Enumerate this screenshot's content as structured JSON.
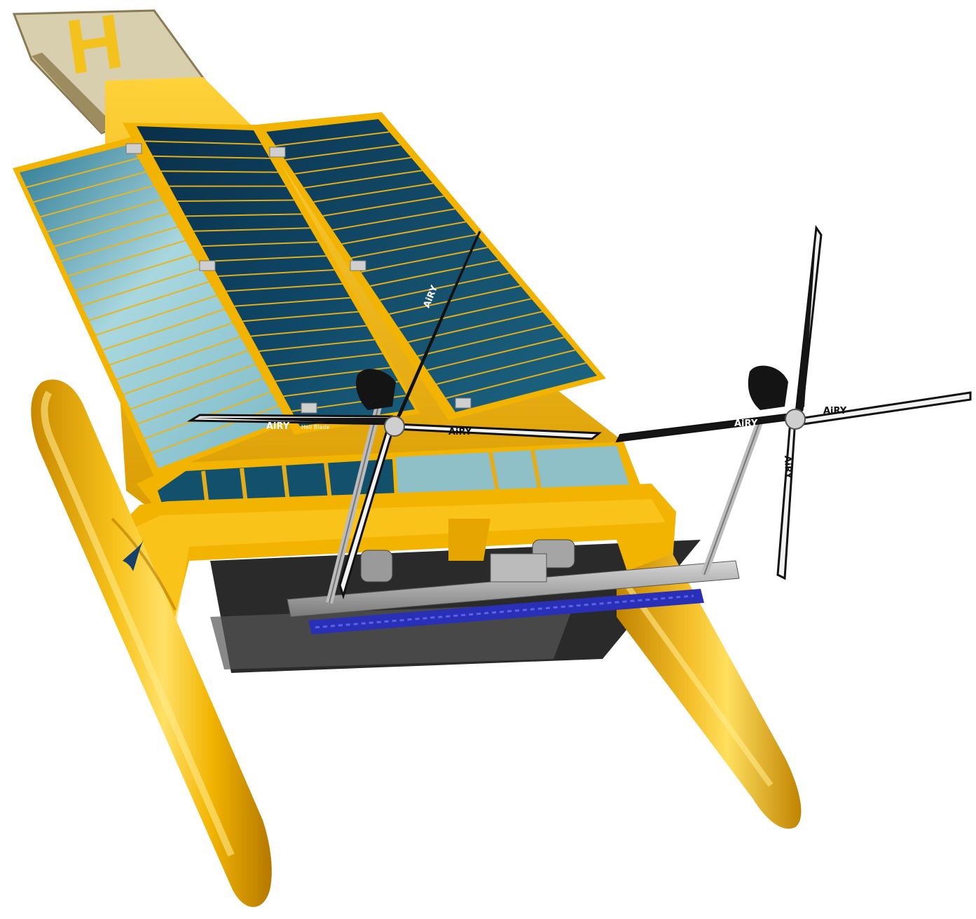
{
  "helipad": {
    "letter": "H"
  },
  "propeller_brand": {
    "name": "AiRY",
    "tagline": "Heli Blade"
  },
  "colors": {
    "hull_yellow": "#f2b400",
    "hull_shadow": "#c98900",
    "hull_highlight": "#ffe066",
    "solar_dark": "#0e3f5e",
    "solar_light": "#9fd3de",
    "blade_black": "#111111",
    "blade_white": "#f2f2f2",
    "blue_part": "#2a2fb8",
    "metal": "#9a9a9a"
  }
}
